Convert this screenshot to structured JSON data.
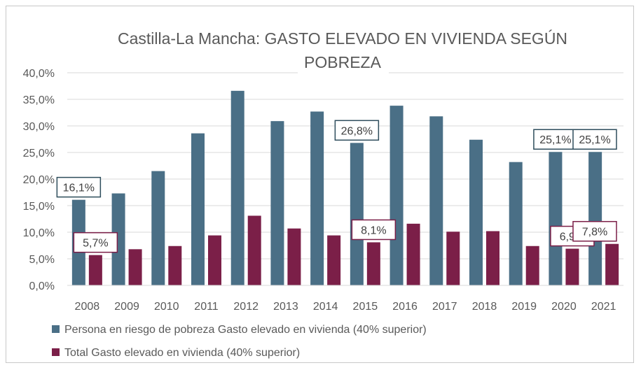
{
  "chart_data": {
    "type": "bar",
    "title_line1": "Castilla-La Mancha: GASTO ELEVADO EN VIVIENDA SEGÚN",
    "title_line2": "POBREZA",
    "categories": [
      "2008",
      "2009",
      "2010",
      "2011",
      "2012",
      "2013",
      "2014",
      "2015",
      "2016",
      "2017",
      "2018",
      "2019",
      "2020",
      "2021"
    ],
    "series": [
      {
        "name": "Persona en riesgo de pobreza Gasto elevado en vivienda (40% superior)",
        "color": "#4a6f86",
        "label_border": "#2e4d5c",
        "values": [
          16.1,
          17.3,
          21.5,
          28.6,
          36.6,
          30.9,
          32.7,
          26.8,
          33.8,
          31.8,
          27.4,
          23.2,
          25.1,
          25.1
        ],
        "data_labels": {
          "0": "16,1%",
          "7": "26,8%",
          "12": "25,1%",
          "13": "25,1%"
        }
      },
      {
        "name": "Total Gasto elevado en vivienda (40% superior)",
        "color": "#7b1f48",
        "label_border": "#7b1f48",
        "values": [
          5.7,
          6.8,
          7.4,
          9.4,
          13.1,
          10.7,
          9.4,
          8.1,
          11.6,
          10.1,
          10.2,
          7.4,
          6.9,
          7.8
        ],
        "data_labels": {
          "0": "5,7%",
          "7": "8,1%",
          "12": "6,9%",
          "13": "7,8%"
        }
      }
    ],
    "ylim": [
      0,
      40
    ],
    "y_ticks": [
      "0,0%",
      "5,0%",
      "10,0%",
      "15,0%",
      "20,0%",
      "25,0%",
      "30,0%",
      "35,0%",
      "40,0%"
    ],
    "grid": true,
    "legend_position": "bottom-left"
  }
}
